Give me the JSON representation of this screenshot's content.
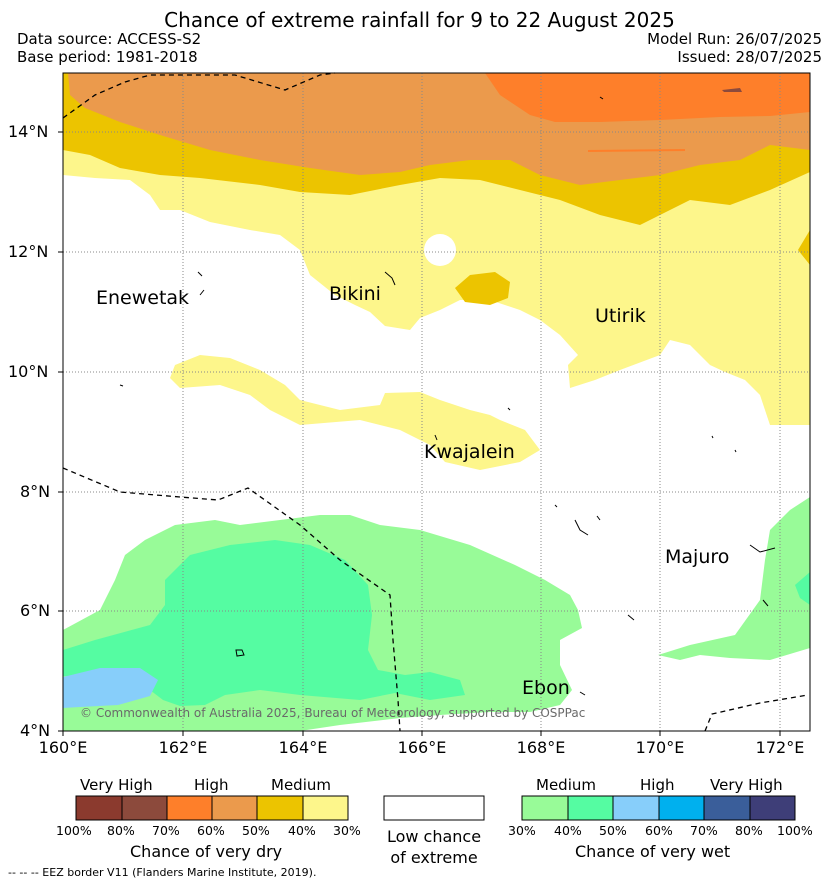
{
  "title": "Chance of extreme rainfall for 9 to 22 August 2025",
  "data_source": "Data source: ACCESS-S2",
  "base_period": "Base period: 1981-2018",
  "model_run": "Model Run: 26/07/2025",
  "issued": "Issued: 28/07/2025",
  "lat_labels": [
    "14°N",
    "12°N",
    "10°N",
    "8°N",
    "6°N",
    "4°N"
  ],
  "lon_labels": [
    "160°E",
    "162°E",
    "164°E",
    "166°E",
    "168°E",
    "170°E",
    "172°E"
  ],
  "places": {
    "enewetak": "Enewetak",
    "bikini": "Bikini",
    "utirik": "Utirik",
    "kwajalein": "Kwajalein",
    "majuro": "Majuro",
    "ebon": "Ebon"
  },
  "copyright": "© Commonwealth of Australia 2025, Bureau of Meteorology, supported by COSPPac",
  "legend": {
    "dry": {
      "title": "Chance of very dry",
      "categories": [
        "Very High",
        "High",
        "Medium"
      ],
      "ticks": [
        "100%",
        "80%",
        "70%",
        "60%",
        "50%",
        "40%",
        "30%"
      ],
      "colors": [
        "#8b3a2e",
        "#8c4a3c",
        "#fe7f2a",
        "#eb9a4c",
        "#ecc400",
        "#fdf68b"
      ]
    },
    "low": {
      "line1": "Low chance",
      "line2": "of extreme",
      "color": "#ffffff"
    },
    "wet": {
      "title": "Chance of very wet",
      "categories": [
        "Medium",
        "High",
        "Very High"
      ],
      "ticks": [
        "30%",
        "40%",
        "50%",
        "60%",
        "70%",
        "80%",
        "100%"
      ],
      "colors": [
        "#98fb98",
        "#55fca2",
        "#87cefa",
        "#00b0ee",
        "#3a5e9a",
        "#3e3e78"
      ]
    }
  },
  "footnote": "-- -- -- EEZ border V11 (Flanders Marine Institute, 2019)."
}
